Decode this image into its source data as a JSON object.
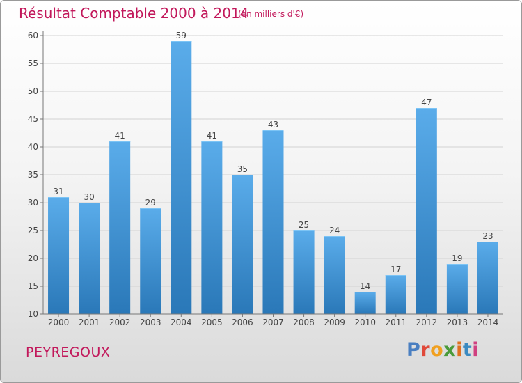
{
  "header": {
    "title": "Résultat Comptable 2000 à 2014",
    "unit": "(en milliers d'€)"
  },
  "footer": {
    "commune": "PEYREGOUX",
    "logo_text": "Proxiti",
    "logo_colors": [
      "#4a7fc1",
      "#e0493a",
      "#f0a020",
      "#4a9a3a",
      "#e07020",
      "#3a8ac1",
      "#d04080"
    ]
  },
  "chart_data": {
    "type": "bar",
    "categories": [
      "2000",
      "2001",
      "2002",
      "2003",
      "2004",
      "2005",
      "2006",
      "2007",
      "2008",
      "2009",
      "2010",
      "2011",
      "2012",
      "2013",
      "2014"
    ],
    "values": [
      31,
      30,
      41,
      29,
      59,
      41,
      35,
      43,
      25,
      24,
      14,
      17,
      47,
      19,
      23
    ],
    "ylim": [
      10,
      60
    ],
    "yticks": [
      10,
      15,
      20,
      25,
      30,
      35,
      40,
      45,
      50,
      55,
      60
    ],
    "grid": true,
    "bar_color_top": "#5aacea",
    "bar_color_bottom": "#2a78b8"
  }
}
